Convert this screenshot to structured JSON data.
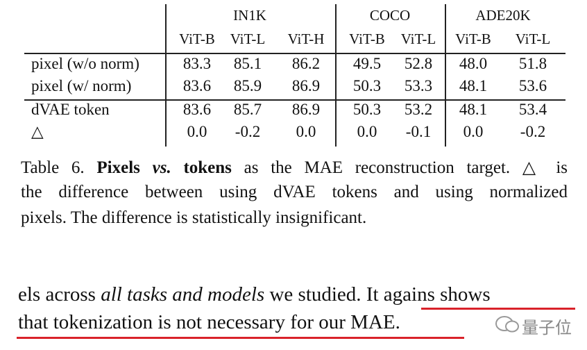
{
  "table": {
    "groups": [
      "IN1K",
      "COCO",
      "ADE20K"
    ],
    "columns": [
      "ViT-B",
      "ViT-L",
      "ViT-H",
      "ViT-B",
      "ViT-L",
      "ViT-B",
      "ViT-L"
    ],
    "rows": [
      {
        "label": "pixel (w/o norm)",
        "values": [
          "83.3",
          "85.1",
          "86.2",
          "49.5",
          "52.8",
          "48.0",
          "51.8"
        ]
      },
      {
        "label": "pixel (w/ norm)",
        "values": [
          "83.6",
          "85.9",
          "86.9",
          "50.3",
          "53.3",
          "48.1",
          "53.6"
        ]
      },
      {
        "label": "dVAE token",
        "values": [
          "83.6",
          "85.7",
          "86.9",
          "50.3",
          "53.2",
          "48.1",
          "53.4"
        ]
      },
      {
        "label": "△",
        "values": [
          "0.0",
          "-0.2",
          "0.0",
          "0.0",
          "-0.1",
          "0.0",
          "-0.2"
        ]
      }
    ]
  },
  "caption": {
    "label": "Table 6.",
    "bold_1": "Pixels",
    "bold_italic": "vs.",
    "bold_2": "tokens",
    "text_1": "as the MAE reconstruction target. △ is",
    "text_2": "the difference between using dVAE tokens and using normalized",
    "text_3": "pixels. The difference is statistically insignificant."
  },
  "body": {
    "text_1": "els across",
    "italic": "all tasks and models",
    "text_2": "we studied.",
    "highlight_1": "It agains shows",
    "highlight_2": "that tokenization is not necessary for our MAE."
  },
  "watermark": "量子位"
}
